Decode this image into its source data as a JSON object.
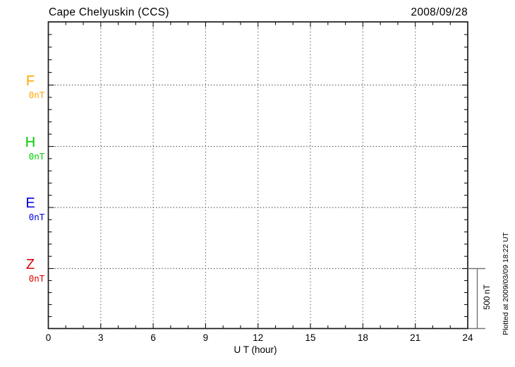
{
  "chart_data": {
    "type": "line",
    "title": "Cape Chelyuskin (CCS)",
    "station_code": "CCS",
    "date": "2008/09/28",
    "xlabel": "U T (hour)",
    "x_range": [
      0,
      24
    ],
    "x_major_ticks": [
      0,
      3,
      6,
      9,
      12,
      15,
      18,
      21,
      24
    ],
    "x_minor_step_hours": 1,
    "grid": "dotted",
    "series": [],
    "channels": [
      {
        "label": "F",
        "value": "0nT",
        "color": "#FFA500"
      },
      {
        "label": "H",
        "value": "0nT",
        "color": "#00CC00"
      },
      {
        "label": "E",
        "value": "0nT",
        "color": "#0000E0"
      },
      {
        "label": "Z",
        "value": "0nT",
        "color": "#E00000"
      }
    ],
    "scale_bar": {
      "label": "500 nT",
      "value_nT": 500
    },
    "footnote": "Plotted at 2009/03/09 18:22 UT"
  }
}
